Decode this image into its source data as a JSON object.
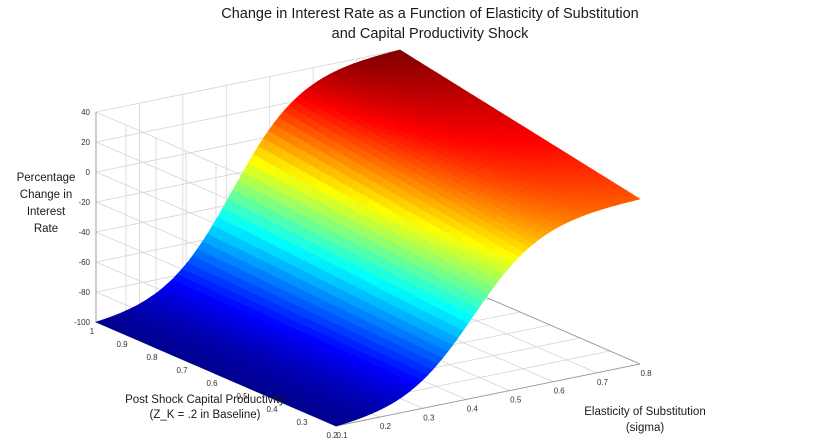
{
  "chart_data": {
    "type": "surface",
    "title": [
      "Change in Interest Rate as a Function of Elasticity of Substitution",
      "and Capital Productivity Shock"
    ],
    "zlabel": [
      "Percentage",
      "Change in",
      "Interest",
      "Rate"
    ],
    "ylabel": [
      "Post Shock Capital Productivity",
      "(Z_K = .2 in Baseline)"
    ],
    "xlabel": [
      "Elasticity of Substitution",
      "(sigma)"
    ],
    "x_ticks": [
      "0.1",
      "0.2",
      "0.3",
      "0.4",
      "0.5",
      "0.6",
      "0.7",
      "0.8"
    ],
    "x_tick_values": [
      0.1,
      0.2,
      0.3,
      0.4,
      0.5,
      0.6,
      0.7,
      0.8
    ],
    "y_ticks": [
      "1",
      "0.9",
      "0.8",
      "0.7",
      "0.6",
      "0.5",
      "0.4",
      "0.3",
      "0.2"
    ],
    "y_tick_values": [
      1,
      0.9,
      0.8,
      0.7,
      0.6,
      0.5,
      0.4,
      0.3,
      0.2
    ],
    "z_ticks": [
      "40",
      "20",
      "0",
      "-20",
      "-40",
      "-60",
      "-80",
      "-100"
    ],
    "z_tick_values": [
      40,
      20,
      0,
      -20,
      -40,
      -60,
      -80,
      -100
    ],
    "xlim": [
      0.1,
      0.8
    ],
    "ylim": [
      0.2,
      1
    ],
    "zlim": [
      -100,
      40
    ],
    "corner_values": [
      {
        "sigma": 0.1,
        "z_k": 1.0,
        "change": -100
      },
      {
        "sigma": 0.1,
        "z_k": 0.2,
        "change": -100
      },
      {
        "sigma": 0.8,
        "z_k": 1.0,
        "change": 40
      },
      {
        "sigma": 0.8,
        "z_k": 0.2,
        "change": 10
      }
    ],
    "sample_values": [
      {
        "sigma": 0.1,
        "z_k": 0.7,
        "change": -82
      },
      {
        "sigma": 0.1,
        "z_k": 0.4,
        "change": -98
      },
      {
        "sigma": 0.45,
        "z_k": 0.2,
        "change": -62
      },
      {
        "sigma": 0.8,
        "z_k": 0.6,
        "change": 25
      }
    ],
    "colormap": [
      "#00008f",
      "#0000ff",
      "#00ffff",
      "#ffff00",
      "#ff0000",
      "#800000"
    ],
    "grid": true
  }
}
